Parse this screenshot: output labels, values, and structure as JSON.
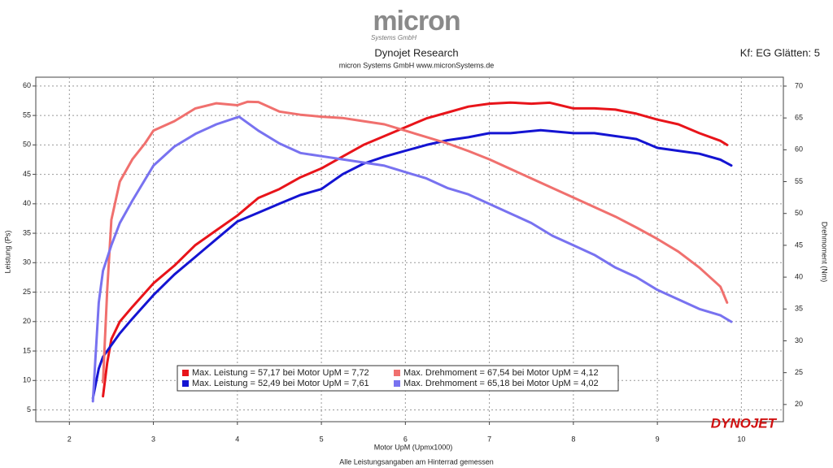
{
  "chart_data": {
    "type": "line",
    "logo": "micron",
    "logo_sub": "Systems GmbH",
    "title": "Dynojet Research",
    "subtitle": "micron Systems GmbH  www.micronSystems.de",
    "smoothing": "Kf: EG Glätten: 5",
    "x_label": "Motor UpM (Upmx1000)",
    "y_label": "Leistung (Ps)",
    "y2_label": "Drehmoment (Nm)",
    "footer": "Alle Leistungsangaben am Hinterrad gemessen",
    "brand": "DYNOJET",
    "xlim": [
      1.6,
      10.5
    ],
    "ylim": [
      3,
      61.5
    ],
    "y2lim": [
      17.3,
      71.4
    ],
    "xticks": [
      2,
      3,
      4,
      5,
      6,
      7,
      8,
      9,
      10
    ],
    "yticks": [
      5,
      10,
      15,
      20,
      25,
      30,
      35,
      40,
      45,
      50,
      55,
      60
    ],
    "y2ticks": [
      20,
      25,
      30,
      35,
      40,
      45,
      50,
      55,
      60,
      65,
      70
    ],
    "grid": true,
    "series": [
      {
        "name": "Max. Leistung = 57,17 bei Motor UpM = 7,72",
        "color": "#e8141a",
        "axis": "y",
        "x": [
          2.4,
          2.45,
          2.5,
          2.6,
          2.75,
          3,
          3.25,
          3.5,
          3.75,
          4,
          4.25,
          4.5,
          4.75,
          5,
          5.25,
          5.5,
          5.75,
          6,
          6.25,
          6.5,
          6.75,
          7,
          7.25,
          7.5,
          7.72,
          8,
          8.25,
          8.5,
          8.75,
          9,
          9.25,
          9.5,
          9.75,
          9.83
        ],
        "values": [
          7.3,
          13,
          17,
          20,
          22.5,
          26.5,
          29.5,
          33,
          35.5,
          38,
          41,
          42.5,
          44.5,
          46,
          48,
          50,
          51.5,
          53,
          54.5,
          55.5,
          56.5,
          57,
          57.2,
          57,
          57.17,
          56.2,
          56.2,
          56,
          55.3,
          54.3,
          53.5,
          52,
          50.7,
          50
        ]
      },
      {
        "name": "Max. Leistung = 52,49 bei Motor UpM = 7,61",
        "color": "#1414d2",
        "axis": "y",
        "x": [
          2.28,
          2.35,
          2.4,
          2.5,
          2.6,
          2.75,
          3,
          3.25,
          3.5,
          3.75,
          4,
          4.25,
          4.5,
          4.75,
          5,
          5.25,
          5.5,
          5.75,
          6,
          6.25,
          6.5,
          6.75,
          7,
          7.25,
          7.61,
          8,
          8.25,
          8.5,
          8.75,
          9,
          9.25,
          9.5,
          9.75,
          9.88
        ],
        "values": [
          7,
          12,
          14,
          16,
          18,
          20.5,
          24.5,
          28,
          31,
          34,
          37,
          38.5,
          40,
          41.5,
          42.5,
          45,
          46.8,
          48,
          49,
          50,
          50.8,
          51.3,
          52,
          52,
          52.49,
          52,
          52,
          51.5,
          51,
          49.5,
          49,
          48.5,
          47.5,
          46.5
        ]
      },
      {
        "name": "Max. Drehmoment = 67,54 bei Motor UpM = 4,12",
        "color": "#f0706e",
        "axis": "y2",
        "x": [
          2.4,
          2.45,
          2.5,
          2.6,
          2.75,
          2.9,
          3,
          3.25,
          3.5,
          3.75,
          4,
          4.12,
          4.25,
          4.5,
          4.75,
          5,
          5.25,
          5.5,
          5.75,
          6,
          6.25,
          6.5,
          6.75,
          7,
          7.25,
          7.5,
          7.75,
          8,
          8.25,
          8.5,
          8.75,
          9,
          9.25,
          9.5,
          9.75,
          9.83
        ],
        "values": [
          23.5,
          38,
          49,
          55,
          58.5,
          61,
          63,
          64.5,
          66.5,
          67.3,
          67,
          67.54,
          67.5,
          66,
          65.5,
          65.2,
          65,
          64.5,
          64,
          63,
          62,
          61,
          59.8,
          58.5,
          57,
          55.5,
          54,
          52.5,
          51,
          49.5,
          47.8,
          46,
          44,
          41.5,
          38.5,
          36
        ]
      },
      {
        "name": "Max. Drehmoment = 65,18 bei Motor UpM = 4,02",
        "color": "#7872f0",
        "axis": "y2",
        "x": [
          2.28,
          2.35,
          2.4,
          2.5,
          2.6,
          2.75,
          3,
          3.25,
          3.5,
          3.75,
          4.02,
          4.25,
          4.5,
          4.75,
          5,
          5.25,
          5.5,
          5.75,
          6,
          6.25,
          6.5,
          6.75,
          7,
          7.25,
          7.5,
          7.75,
          8,
          8.25,
          8.5,
          8.75,
          9,
          9.25,
          9.5,
          9.75,
          9.88
        ],
        "values": [
          20.5,
          36,
          41,
          45,
          48.5,
          52,
          57.5,
          60.5,
          62.5,
          64,
          65.18,
          63,
          61,
          59.5,
          59,
          58.5,
          58,
          57.5,
          56.5,
          55.5,
          54,
          53,
          51.5,
          50,
          48.5,
          46.5,
          45,
          43.5,
          41.5,
          40,
          38,
          36.5,
          35,
          34,
          33
        ]
      }
    ]
  }
}
